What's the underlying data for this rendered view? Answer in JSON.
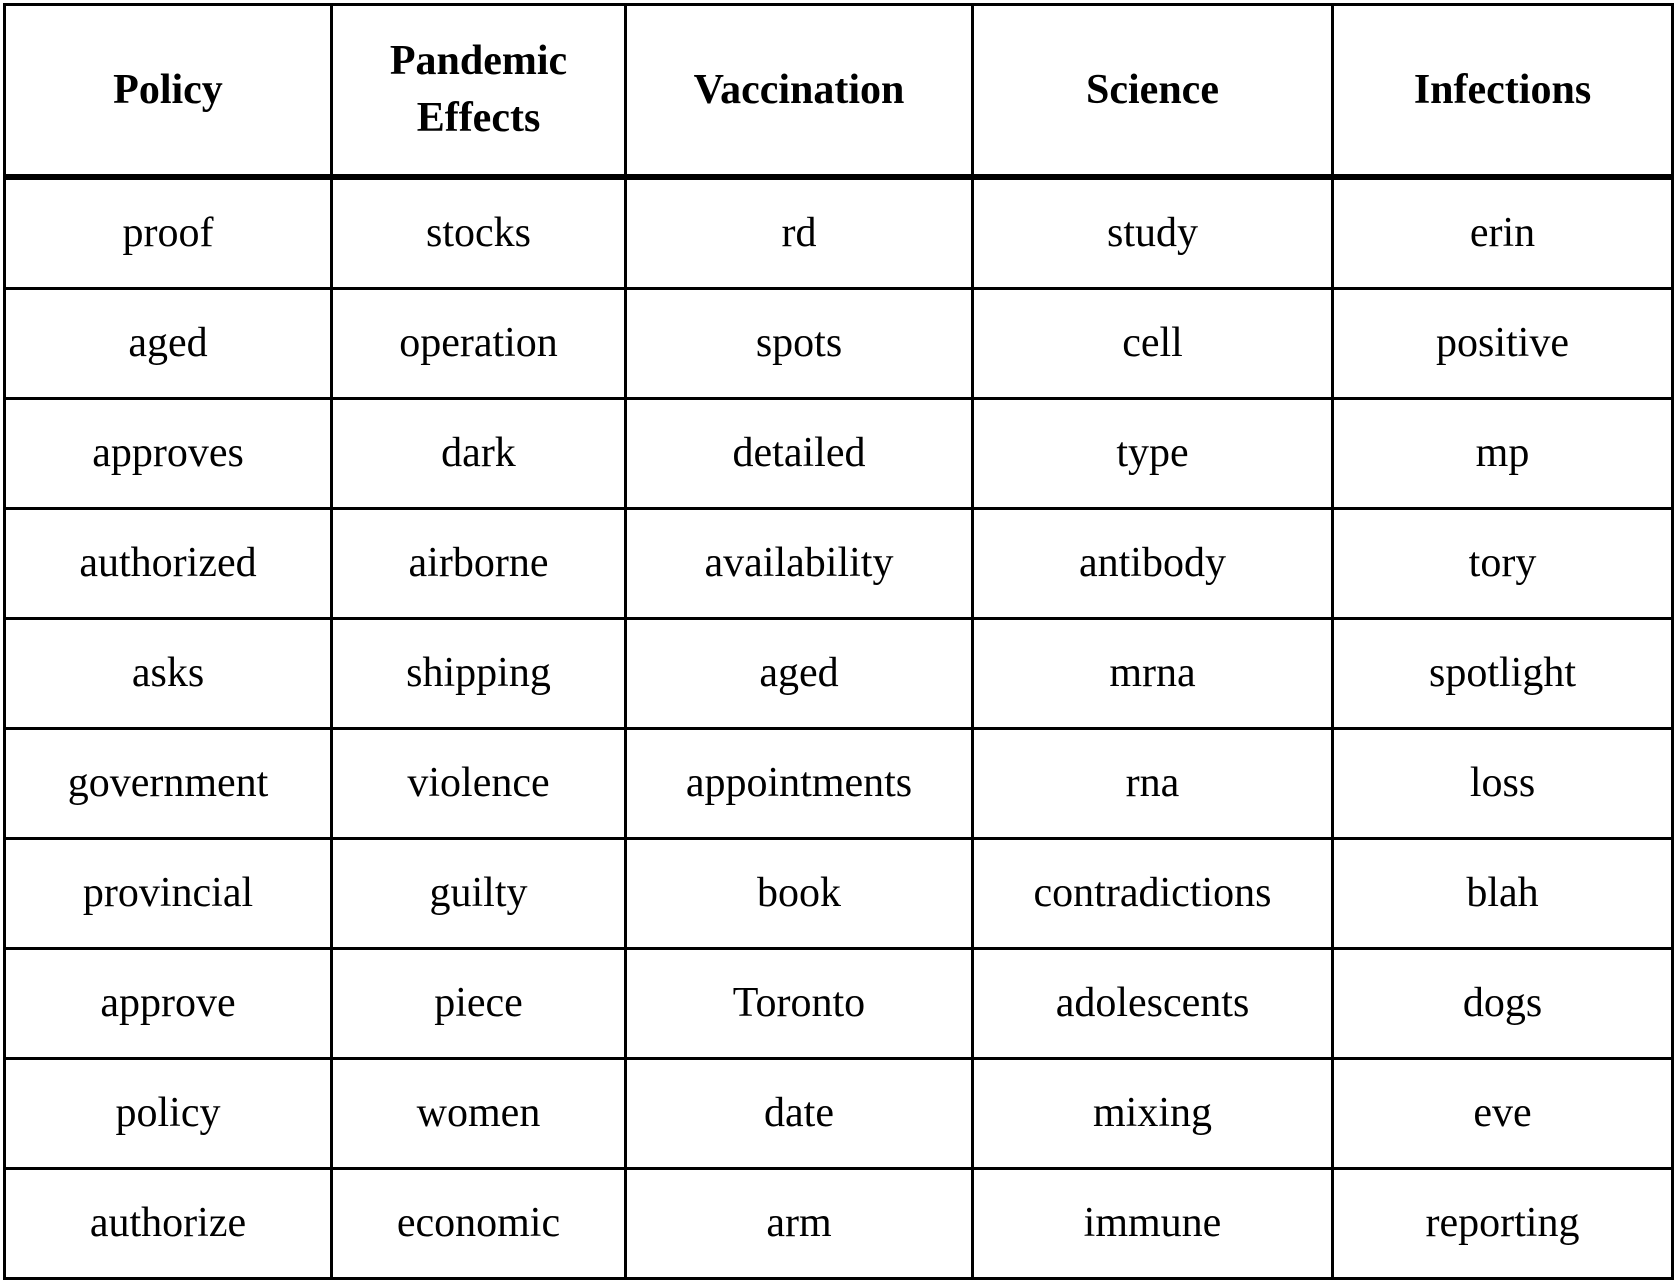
{
  "table": {
    "headers": [
      "Policy",
      "Pandemic Effects",
      "Vaccination",
      "Science",
      "Infections"
    ],
    "rows": [
      [
        "proof",
        "stocks",
        "rd",
        "study",
        "erin"
      ],
      [
        "aged",
        "operation",
        "spots",
        "cell",
        "positive"
      ],
      [
        "approves",
        "dark",
        "detailed",
        "type",
        "mp"
      ],
      [
        "authorized",
        "airborne",
        "availability",
        "antibody",
        "tory"
      ],
      [
        "asks",
        "shipping",
        "aged",
        "mrna",
        "spotlight"
      ],
      [
        "government",
        "violence",
        "appointments",
        "rna",
        "loss"
      ],
      [
        "provincial",
        "guilty",
        "book",
        "contradictions",
        "blah"
      ],
      [
        "approve",
        "piece",
        "Toronto",
        "adolescents",
        "dogs"
      ],
      [
        "policy",
        "women",
        "date",
        "mixing",
        "eve"
      ],
      [
        "authorize",
        "economic",
        "arm",
        "immune",
        "reporting"
      ]
    ]
  }
}
